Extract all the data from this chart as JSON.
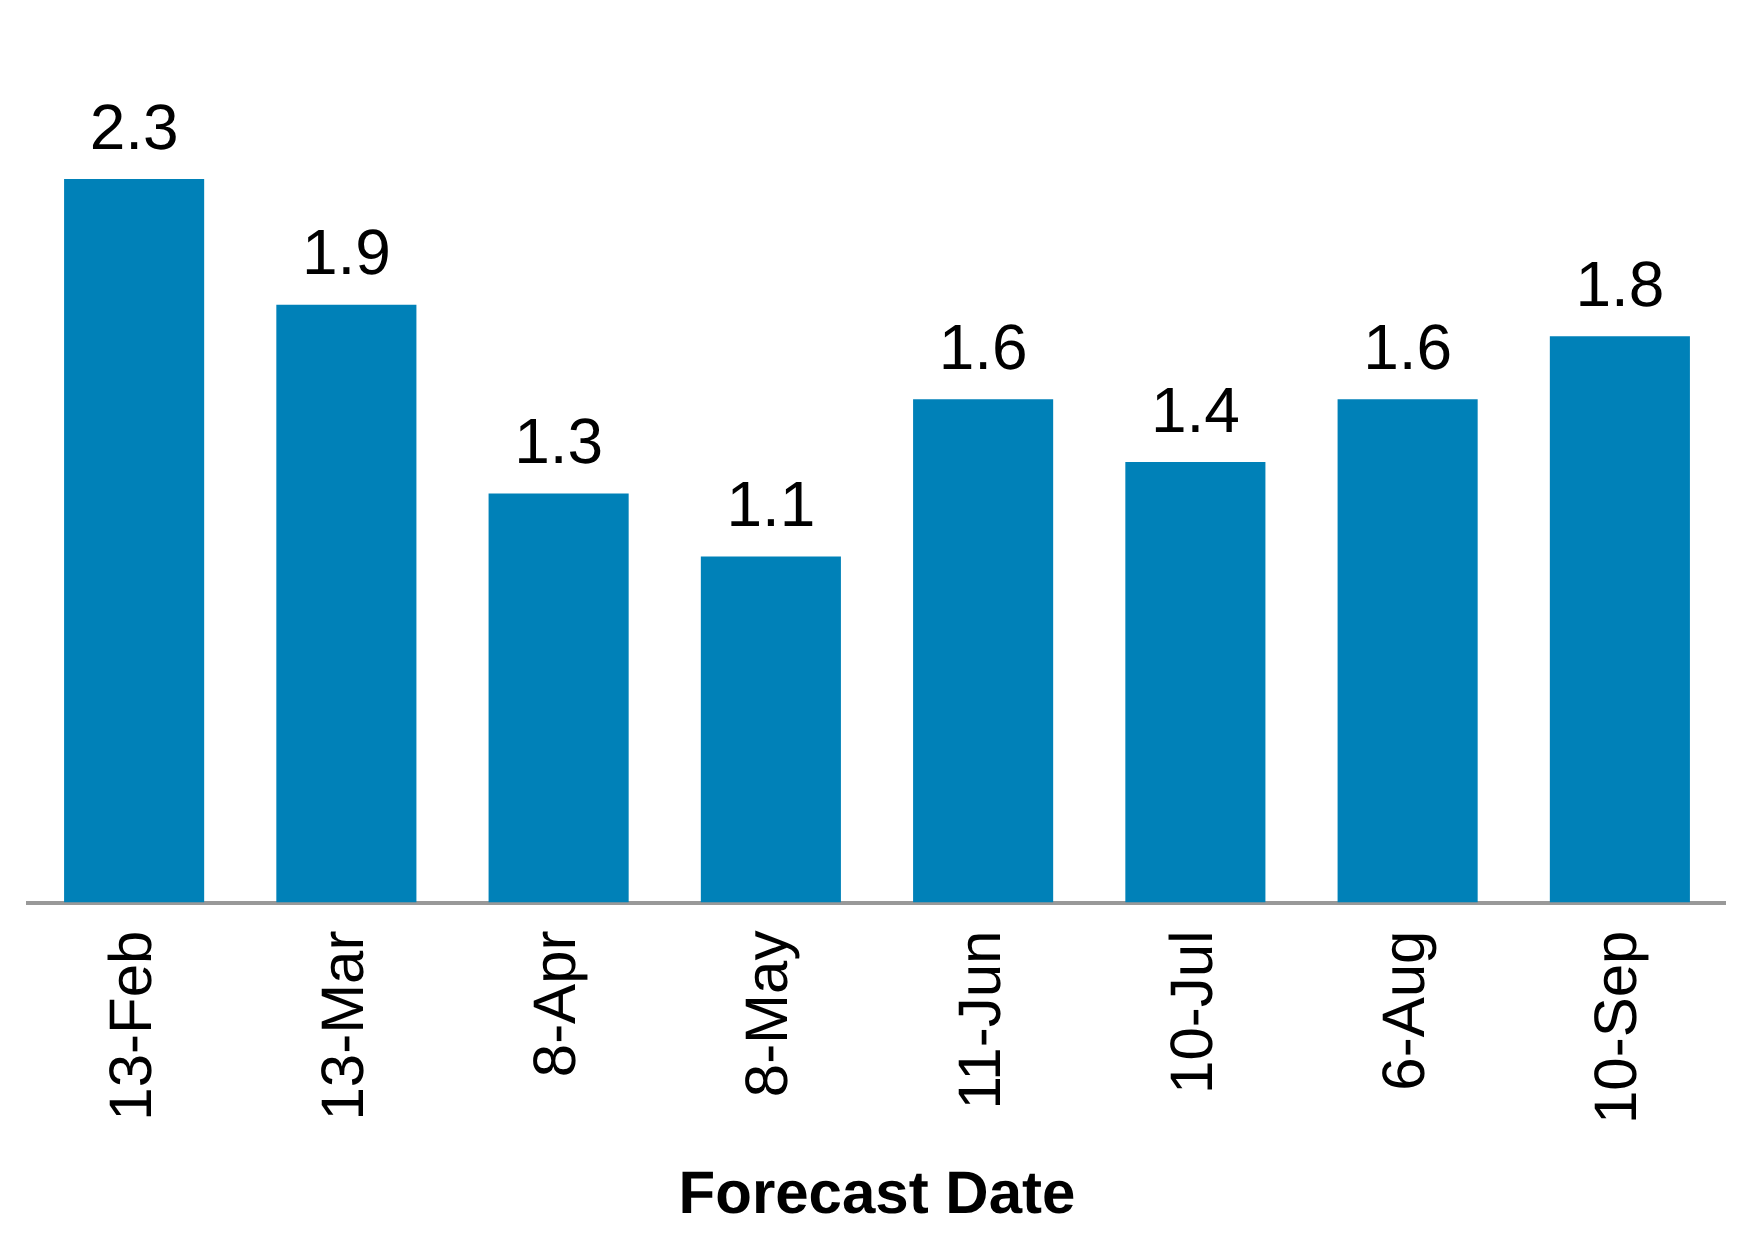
{
  "chart_data": {
    "type": "bar",
    "xlabel": "Forecast Date",
    "categories": [
      "13-Feb",
      "13-Mar",
      "8-Apr",
      "8-May",
      "11-Jun",
      "10-Jul",
      "6-Aug",
      "10-Sep"
    ],
    "values": [
      2.3,
      1.9,
      1.3,
      1.1,
      1.6,
      1.4,
      1.6,
      1.8
    ],
    "color": "#0081b8",
    "data_labels": true,
    "grid": false,
    "legend": false
  }
}
